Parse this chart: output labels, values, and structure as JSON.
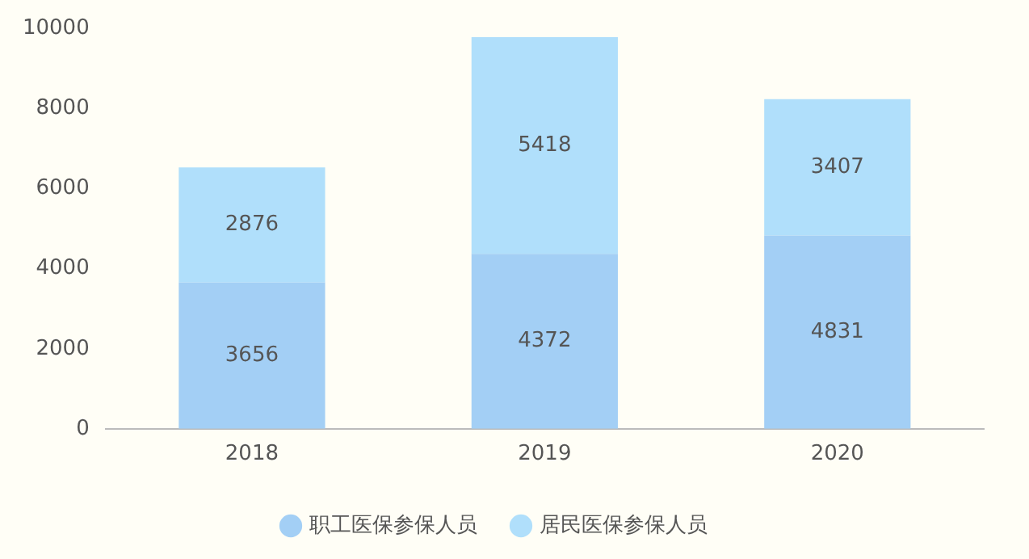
{
  "chart_data": {
    "type": "bar",
    "stacked": true,
    "categories": [
      "2018",
      "2019",
      "2020"
    ],
    "series": [
      {
        "name": "职工医保参保人员",
        "color": "#a3cff5",
        "values": [
          3656,
          4372,
          4831
        ]
      },
      {
        "name": "居民医保参保人员",
        "color": "#b0dffb",
        "values": [
          2876,
          5418,
          3407
        ]
      }
    ],
    "ylim": [
      0,
      10000
    ],
    "yticks": [
      0,
      2000,
      4000,
      6000,
      8000,
      10000
    ],
    "grid": false,
    "legend": "bottom",
    "data_labels": true
  }
}
